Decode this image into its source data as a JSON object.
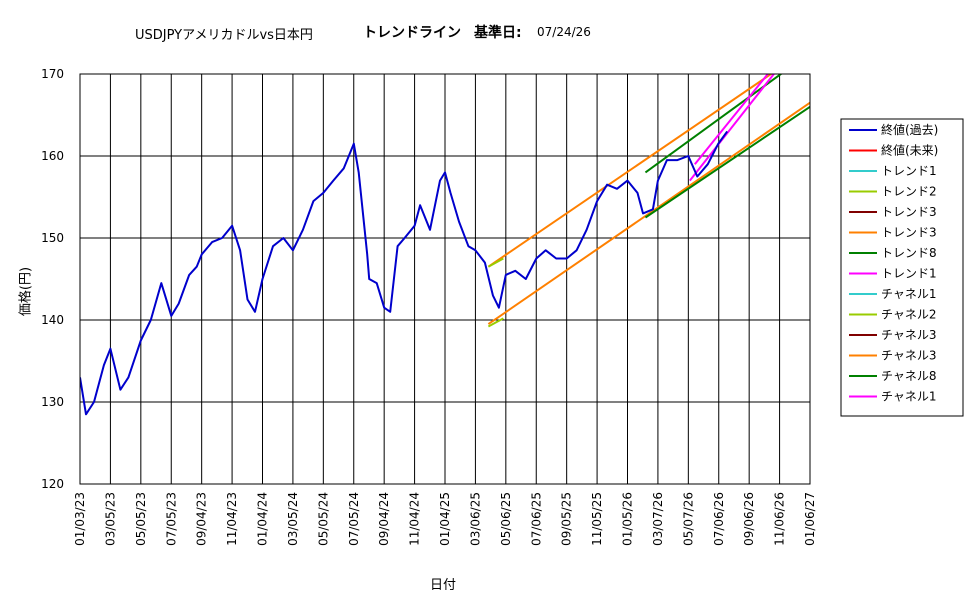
{
  "title": {
    "pair": "USDJPYアメリカドルvs日本円",
    "trend": "トレンドライン",
    "base_label": "基準日:",
    "base_date": "07/24/26"
  },
  "colors": {
    "actual": "#0000cc",
    "future": "#ff0000",
    "cyan": "#33cccc",
    "olive": "#99cc00",
    "maroon": "#800000",
    "orange": "#ff8000",
    "green": "#008000",
    "magenta": "#ff00ff"
  },
  "chart_data": {
    "type": "line",
    "xlabel": "日付",
    "ylabel": "価格(円)",
    "ylim": [
      120,
      170
    ],
    "y_ticks": [
      120,
      130,
      140,
      150,
      160,
      170
    ],
    "x_ticks": [
      "01/03/23",
      "03/05/23",
      "05/05/23",
      "07/05/23",
      "09/04/23",
      "11/04/23",
      "01/04/24",
      "03/05/24",
      "05/05/24",
      "07/05/24",
      "09/04/24",
      "11/04/24",
      "01/04/25",
      "03/06/25",
      "05/06/25",
      "07/06/25",
      "09/05/25",
      "11/05/25",
      "01/05/26",
      "03/07/26",
      "05/07/26",
      "07/06/26",
      "09/06/26",
      "11/06/26",
      "01/06/27"
    ],
    "x_range": [
      "01/03/23",
      "01/06/27"
    ],
    "grid": true,
    "legend_position": "right",
    "legend": [
      {
        "name": "終値(過去)",
        "color": "#0000cc"
      },
      {
        "name": "終値(未来)",
        "color": "#ff0000"
      },
      {
        "name": "トレンド1",
        "color": "#33cccc"
      },
      {
        "name": "トレンド2",
        "color": "#99cc00"
      },
      {
        "name": "トレンド3",
        "color": "#800000"
      },
      {
        "name": "トレンド3",
        "color": "#ff8000"
      },
      {
        "name": "トレンド8",
        "color": "#008000"
      },
      {
        "name": "トレンド1",
        "color": "#ff00ff"
      },
      {
        "name": "チャネル1",
        "color": "#33cccc"
      },
      {
        "name": "チャネル2",
        "color": "#99cc00"
      },
      {
        "name": "チャネル3",
        "color": "#800000"
      },
      {
        "name": "チャネル3",
        "color": "#ff8000"
      },
      {
        "name": "チャネル8",
        "color": "#008000"
      },
      {
        "name": "チャネル1",
        "color": "#ff00ff"
      }
    ],
    "series": [
      {
        "name": "終値(過去)",
        "color": "#0000cc",
        "x": [
          "01/03/23",
          "01/15/23",
          "01/31/23",
          "02/20/23",
          "03/05/23",
          "03/25/23",
          "04/10/23",
          "05/05/23",
          "05/25/23",
          "06/15/23",
          "07/05/23",
          "07/20/23",
          "08/10/23",
          "08/25/23",
          "09/04/23",
          "09/25/23",
          "10/15/23",
          "11/04/23",
          "11/20/23",
          "12/05/23",
          "12/20/23",
          "01/04/24",
          "01/25/24",
          "02/15/24",
          "03/05/24",
          "03/25/24",
          "04/15/24",
          "05/05/24",
          "05/25/24",
          "06/15/24",
          "07/05/24",
          "07/15/24",
          "08/01/24",
          "08/05/24",
          "08/20/24",
          "09/04/24",
          "09/16/24",
          "10/01/24",
          "10/15/24",
          "11/04/24",
          "11/15/24",
          "12/05/24",
          "12/25/24",
          "01/04/25",
          "01/15/25",
          "02/01/25",
          "02/20/25",
          "03/06/25",
          "03/25/25",
          "04/10/25",
          "04/22/25",
          "05/06/25",
          "05/25/25",
          "06/15/25",
          "07/06/25",
          "07/25/25",
          "08/15/25",
          "09/05/25",
          "09/25/25",
          "10/15/25",
          "11/05/25",
          "11/25/25",
          "12/15/25",
          "01/05/26",
          "01/25/26",
          "02/05/26",
          "02/25/26",
          "03/07/26",
          "03/25/26",
          "04/15/26",
          "05/07/26",
          "05/25/26",
          "06/15/26",
          "07/06/26",
          "07/24/26"
        ],
        "y": [
          133.0,
          128.5,
          130.0,
          134.5,
          136.5,
          131.5,
          133.0,
          137.5,
          140.0,
          144.5,
          140.5,
          142.0,
          145.5,
          146.5,
          148.0,
          149.5,
          150.0,
          151.5,
          148.5,
          142.5,
          141.0,
          145.0,
          149.0,
          150.0,
          148.5,
          151.0,
          154.5,
          155.5,
          157.0,
          158.5,
          161.5,
          158.0,
          148.0,
          145.0,
          144.5,
          141.5,
          141.0,
          149.0,
          150.0,
          151.5,
          154.0,
          151.0,
          157.0,
          158.0,
          155.5,
          152.0,
          149.0,
          148.5,
          147.0,
          143.0,
          141.5,
          145.5,
          146.0,
          145.0,
          147.5,
          148.5,
          147.5,
          147.5,
          148.5,
          151.0,
          154.5,
          156.5,
          156.0,
          157.0,
          155.5,
          153.0,
          153.5,
          157.0,
          159.5,
          159.5,
          160.0,
          157.5,
          159.0,
          161.5,
          163.0
        ]
      }
    ],
    "trend_lines": [
      {
        "name": "orange-upper",
        "color": "#ff8000",
        "x": [
          "04/01/25",
          "11/01/26"
        ],
        "y": [
          146.5,
          170.5
        ]
      },
      {
        "name": "orange-lower",
        "color": "#ff8000",
        "x": [
          "04/01/25",
          "01/06/27"
        ],
        "y": [
          139.5,
          166.5
        ]
      },
      {
        "name": "olive-upper",
        "color": "#99cc00",
        "x": [
          "04/01/25",
          "05/01/25"
        ],
        "y": [
          146.5,
          147.5
        ]
      },
      {
        "name": "olive-lower",
        "color": "#99cc00",
        "x": [
          "04/01/25",
          "05/01/25"
        ],
        "y": [
          139.2,
          140.2
        ]
      },
      {
        "name": "green-upper",
        "color": "#008000",
        "x": [
          "02/10/26",
          "11/20/26"
        ],
        "y": [
          158.0,
          170.5
        ]
      },
      {
        "name": "green-lower",
        "color": "#008000",
        "x": [
          "02/10/26",
          "01/06/27"
        ],
        "y": [
          152.5,
          166.0
        ]
      },
      {
        "name": "magenta-upper",
        "color": "#ff00ff",
        "x": [
          "05/20/26",
          "10/20/26"
        ],
        "y": [
          159.0,
          170.5
        ]
      },
      {
        "name": "magenta-lower",
        "color": "#ff00ff",
        "x": [
          "05/10/26",
          "11/01/26"
        ],
        "y": [
          157.0,
          170.5
        ]
      }
    ]
  }
}
